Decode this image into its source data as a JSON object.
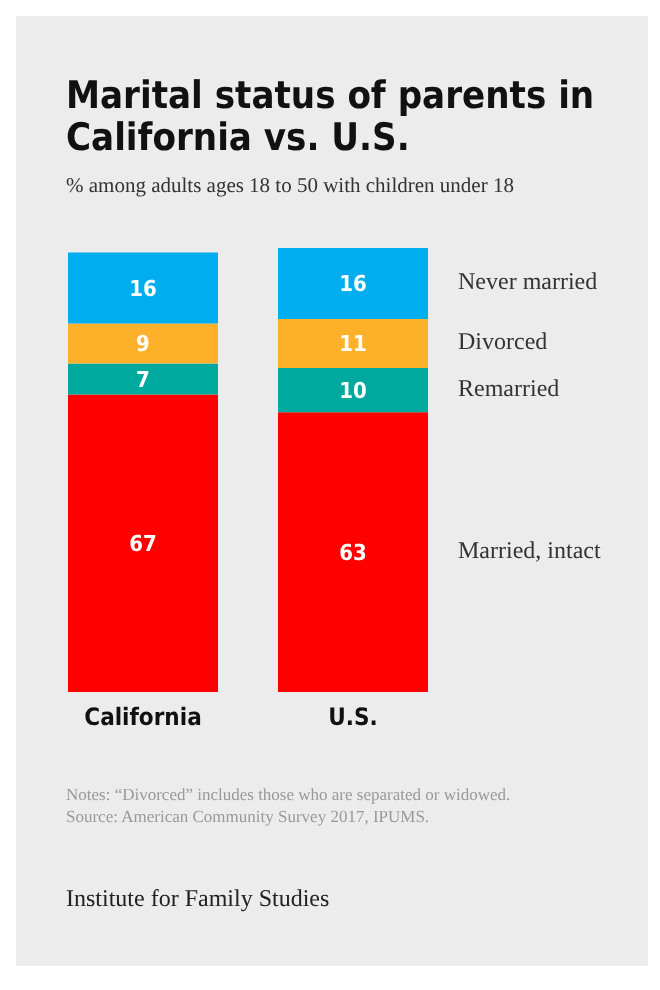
{
  "chart_data": {
    "type": "bar",
    "title": "Marital status of parents in California vs. U.S.",
    "subtitle": "% among adults ages 18 to 50 with children under 18",
    "categories": [
      "California",
      "U.S."
    ],
    "stacked": true,
    "data_labels": true,
    "legend": "right",
    "series": [
      {
        "name": "Married, intact",
        "color": "#ff0000",
        "values": [
          67,
          63
        ]
      },
      {
        "name": "Remarried",
        "color": "#00a99d",
        "values": [
          7,
          10
        ]
      },
      {
        "name": "Divorced",
        "color": "#fdb12b",
        "values": [
          9,
          11
        ]
      },
      {
        "name": "Never married",
        "color": "#00aeef",
        "values": [
          16,
          16
        ]
      }
    ],
    "annotations": [
      "Notes: “Divorced” includes those who are separated or widowed.",
      "Source: American Community Survey 2017, IPUMS.",
      "Institute for Family Studies"
    ]
  }
}
